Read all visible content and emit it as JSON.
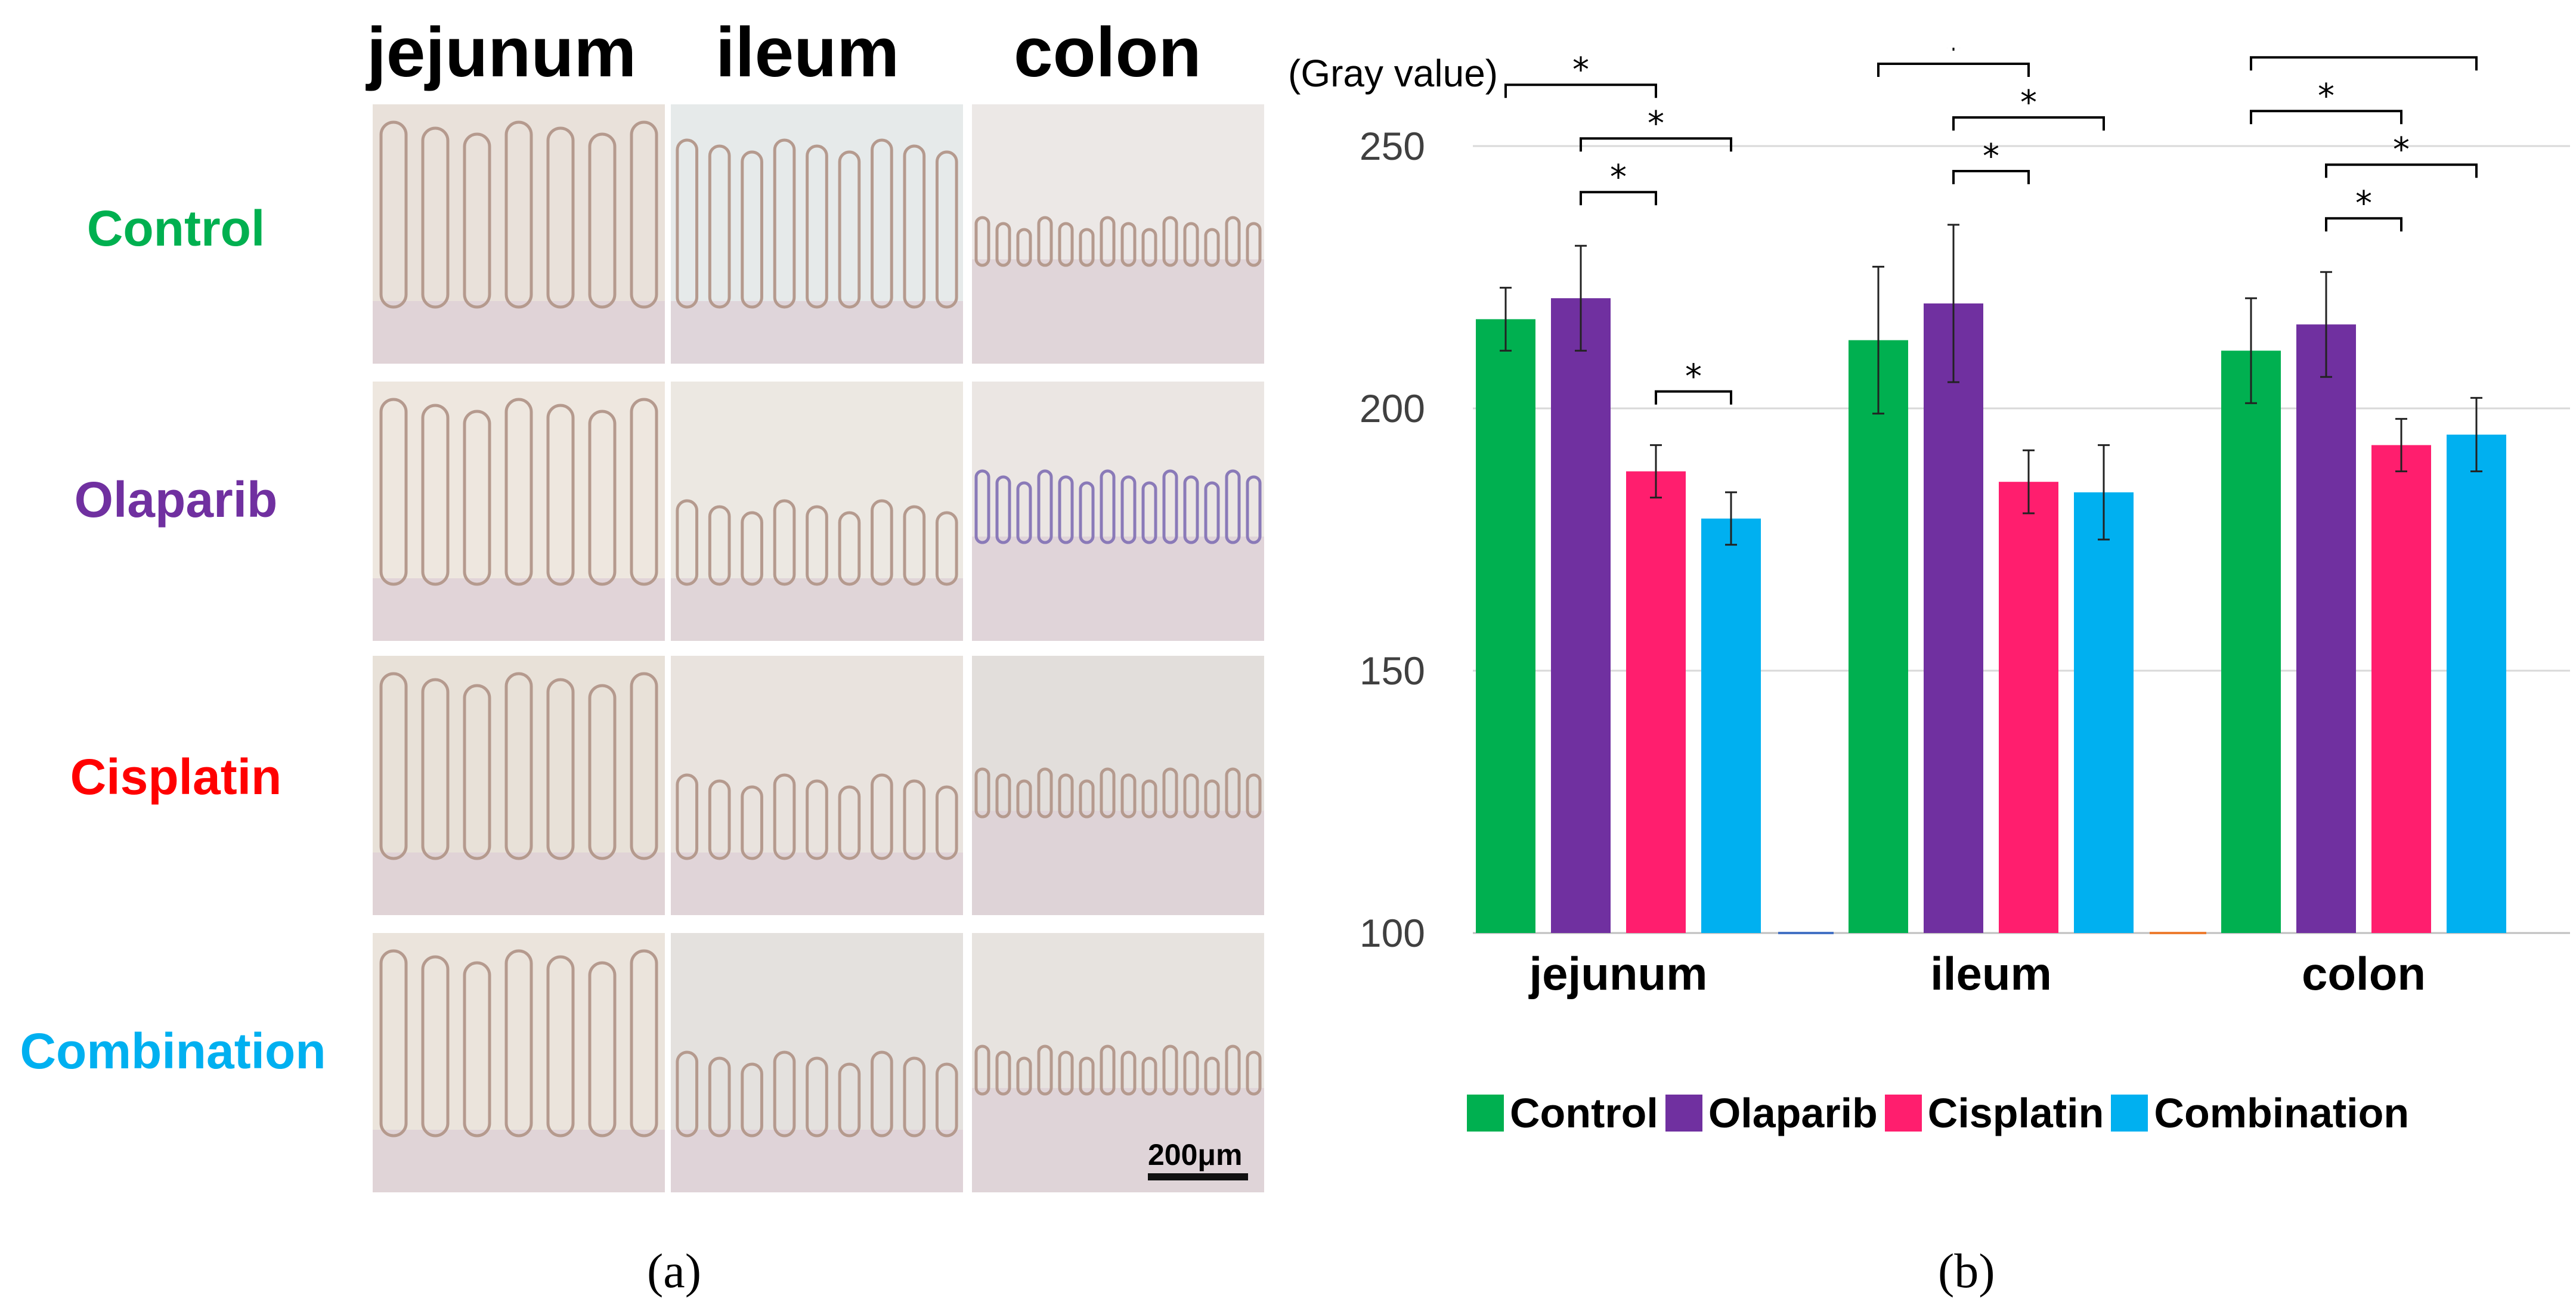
{
  "panel_a": {
    "column_labels": [
      "jejunum",
      "ileum",
      "colon"
    ],
    "row_labels": [
      {
        "text": "Control",
        "color": "#00b050"
      },
      {
        "text": "Olaparib",
        "color": "#7030a0"
      },
      {
        "text": "Cisplatin",
        "color": "#ff0000"
      },
      {
        "text": "Combination",
        "color": "#00b0f0"
      }
    ],
    "scale_bar": "200μm",
    "caption": "(a)"
  },
  "panel_b": {
    "caption": "(b)"
  },
  "chart_data": {
    "type": "bar",
    "ylabel": "(Gray value)",
    "ylim": [
      100,
      250
    ],
    "yticks": [
      100,
      150,
      200,
      250
    ],
    "grid": true,
    "categories": [
      "jejunum",
      "ileum",
      "colon"
    ],
    "series": [
      {
        "name": "Control",
        "color": "#00b050",
        "values": [
          217,
          213,
          211
        ],
        "errors": [
          6,
          14,
          10
        ]
      },
      {
        "name": "Olaparib",
        "color": "#7030a0",
        "values": [
          221,
          220,
          216
        ],
        "errors": [
          10,
          15,
          10
        ]
      },
      {
        "name": "Cisplatin",
        "color": "#ff1e6e",
        "values": [
          188,
          186,
          193
        ],
        "errors": [
          5,
          6,
          5
        ]
      },
      {
        "name": "Combination",
        "color": "#00b0f0",
        "values": [
          179,
          184,
          195
        ],
        "errors": [
          5,
          9,
          7
        ]
      }
    ],
    "significance": [
      {
        "category": 0,
        "from": 0,
        "to": 3,
        "label": "*"
      },
      {
        "category": 0,
        "from": 0,
        "to": 2,
        "label": "*"
      },
      {
        "category": 0,
        "from": 1,
        "to": 3,
        "label": "*"
      },
      {
        "category": 0,
        "from": 1,
        "to": 2,
        "label": "*"
      },
      {
        "category": 0,
        "from": 2,
        "to": 3,
        "label": "*"
      },
      {
        "category": 1,
        "from": 0,
        "to": 3,
        "label": "*"
      },
      {
        "category": 1,
        "from": 0,
        "to": 2,
        "label": "*"
      },
      {
        "category": 1,
        "from": 1,
        "to": 3,
        "label": "*"
      },
      {
        "category": 1,
        "from": 1,
        "to": 2,
        "label": "*"
      },
      {
        "category": 2,
        "from": 0,
        "to": 3,
        "label": "*"
      },
      {
        "category": 2,
        "from": 0,
        "to": 2,
        "label": "*"
      },
      {
        "category": 2,
        "from": 1,
        "to": 3,
        "label": "*"
      },
      {
        "category": 2,
        "from": 1,
        "to": 2,
        "label": "*"
      }
    ],
    "legend_position": "bottom"
  }
}
